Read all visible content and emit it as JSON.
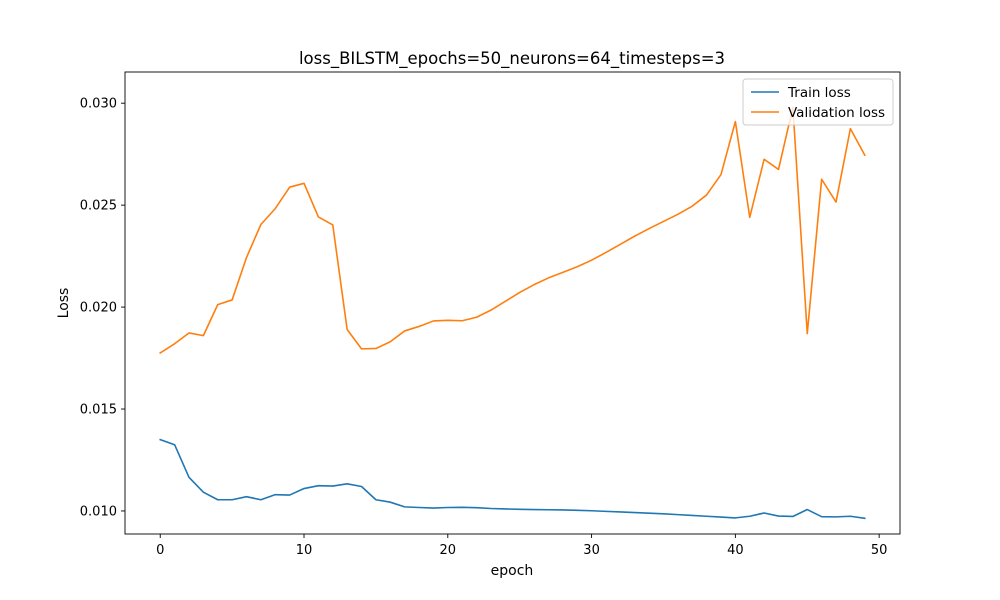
{
  "chart_data": {
    "type": "line",
    "title": "loss_BILSTM_epochs=50_neurons=64_timesteps=3",
    "xlabel": "epoch",
    "ylabel": "Loss",
    "xlim": [
      -2.45,
      51.45
    ],
    "ylim": [
      0.00887,
      0.03153
    ],
    "xticks": [
      0,
      10,
      20,
      30,
      40,
      50
    ],
    "yticks": [
      0.01,
      0.015,
      0.02,
      0.025,
      0.03
    ],
    "ytick_labels": [
      "0.010",
      "0.015",
      "0.020",
      "0.025",
      "0.030"
    ],
    "grid": false,
    "legend_position": "top-right",
    "x": [
      0,
      1,
      2,
      3,
      4,
      5,
      6,
      7,
      8,
      9,
      10,
      11,
      12,
      13,
      14,
      15,
      16,
      17,
      18,
      19,
      20,
      21,
      22,
      23,
      24,
      25,
      26,
      27,
      28,
      29,
      30,
      31,
      32,
      33,
      34,
      35,
      36,
      37,
      38,
      39,
      40,
      41,
      42,
      43,
      44,
      45,
      46,
      47,
      48,
      49
    ],
    "series": [
      {
        "name": "Train loss",
        "color": "#1f77b4",
        "values": [
          0.0135,
          0.01325,
          0.01165,
          0.01092,
          0.01055,
          0.01055,
          0.0107,
          0.01055,
          0.0108,
          0.01078,
          0.0111,
          0.01124,
          0.01122,
          0.01133,
          0.0112,
          0.01055,
          0.01043,
          0.0102,
          0.01017,
          0.01014,
          0.01017,
          0.01018,
          0.01016,
          0.01012,
          0.0101,
          0.01008,
          0.01007,
          0.01006,
          0.01005,
          0.01003,
          0.01001,
          0.00998,
          0.00995,
          0.00992,
          0.00989,
          0.00986,
          0.00982,
          0.00978,
          0.00974,
          0.0097,
          0.00966,
          0.00974,
          0.0099,
          0.00975,
          0.00973,
          0.01007,
          0.00972,
          0.00971,
          0.00974,
          0.00964
        ]
      },
      {
        "name": "Validation loss",
        "color": "#ff7f0e",
        "values": [
          0.01775,
          0.0182,
          0.01873,
          0.0186,
          0.02012,
          0.02035,
          0.02243,
          0.02405,
          0.02483,
          0.02588,
          0.02607,
          0.02442,
          0.02403,
          0.0189,
          0.01795,
          0.01797,
          0.0183,
          0.01883,
          0.01905,
          0.01932,
          0.01935,
          0.01933,
          0.0195,
          0.01985,
          0.02028,
          0.02072,
          0.0211,
          0.02143,
          0.0217,
          0.02198,
          0.0223,
          0.02268,
          0.02308,
          0.02348,
          0.02385,
          0.0242,
          0.02455,
          0.02495,
          0.0255,
          0.0265,
          0.0291,
          0.0244,
          0.02725,
          0.02675,
          0.0298,
          0.0187,
          0.02627,
          0.02515,
          0.02875,
          0.02745
        ]
      }
    ]
  }
}
